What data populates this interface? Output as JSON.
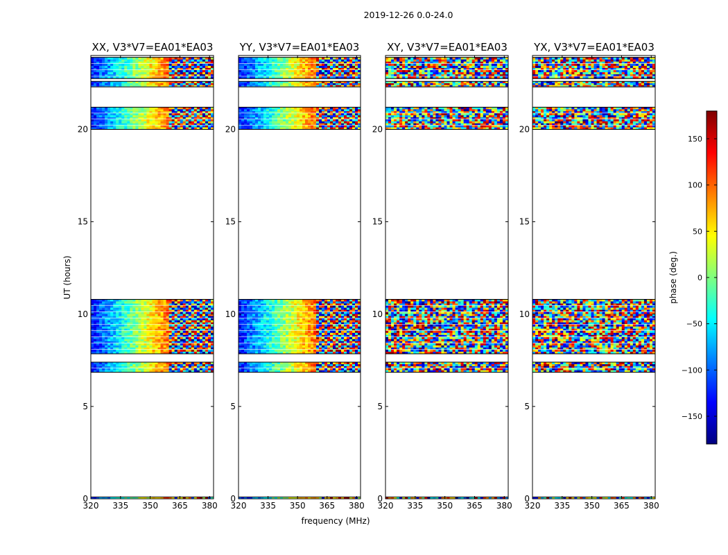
{
  "chart_data": {
    "type": "heatmap",
    "suptitle": "2019-12-26 0.0-24.0",
    "xlabel": "frequency (MHz)",
    "ylabel": "UT (hours)",
    "xlim": [
      320,
      382
    ],
    "ylim": [
      0,
      24
    ],
    "xticks": [
      "320",
      "335",
      "350",
      "365",
      "380"
    ],
    "yticks": [
      "0",
      "5",
      "10",
      "15",
      "20"
    ],
    "panels": [
      {
        "title": "XX, V3*V7=EA01*EA03",
        "pol": "XX"
      },
      {
        "title": "YY, V3*V7=EA01*EA03",
        "pol": "YY"
      },
      {
        "title": "XY, V3*V7=EA01*EA03",
        "pol": "XY"
      },
      {
        "title": "YX, V3*V7=EA01*EA03",
        "pol": "YX"
      }
    ],
    "data_bands_ut_hours": [
      [
        0.0,
        0.1
      ],
      [
        6.85,
        7.4
      ],
      [
        7.85,
        10.8
      ],
      [
        20.0,
        21.2
      ],
      [
        22.3,
        22.6
      ],
      [
        22.75,
        23.9
      ]
    ],
    "colorbar": {
      "label": "phase (deg.)",
      "range": [
        -180,
        180
      ],
      "ticks": [
        "150",
        "100",
        "50",
        "0",
        "−50",
        "−100",
        "−150"
      ],
      "tick_values": [
        150,
        100,
        50,
        0,
        -50,
        -100,
        -150
      ],
      "colormap": "jet",
      "colors": [
        "#00007f",
        "#0000ff",
        "#007fff",
        "#00ffff",
        "#7fff7f",
        "#ffff00",
        "#ff7f00",
        "#ff0000",
        "#7f0000"
      ]
    }
  }
}
